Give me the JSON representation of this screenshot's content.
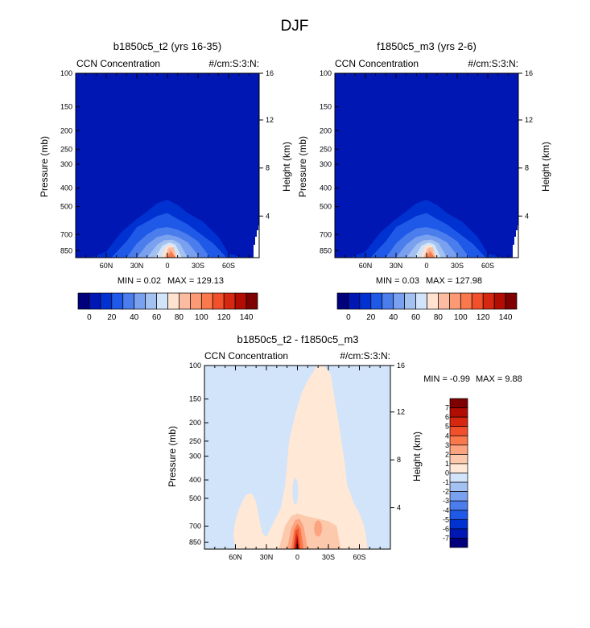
{
  "page_title": "DJF",
  "colors": {
    "ccn_scale": [
      "#00007d",
      "#0017b4",
      "#0032d2",
      "#1f59e8",
      "#4b7ded",
      "#7aa1ef",
      "#a3c1f1",
      "#d1e4fa",
      "#ffe3d0",
      "#fcbca1",
      "#fb9a75",
      "#f9784c",
      "#f2502b",
      "#d62810",
      "#b20d03",
      "#7e0000"
    ],
    "diff_scale": [
      "#00007d",
      "#0017b4",
      "#0032d2",
      "#1f59e8",
      "#4b7ded",
      "#7aa1ef",
      "#a3c1f1",
      "#d1e4fa",
      "#ffe8d6",
      "#fcc9ac",
      "#fba47f",
      "#f9784c",
      "#f2502b",
      "#d62810",
      "#b20d03",
      "#7e0000"
    ]
  },
  "chart_data": [
    {
      "type": "heatmap",
      "id": "panel-left",
      "title": "b1850c5_t2 (yrs 16-35)",
      "left_label": "CCN Concentration",
      "right_label": "#/cm:S:3:N:",
      "xlabel": "",
      "ylabel": "Pressure (mb)",
      "ylabel_right": "Height (km)",
      "x_ticks": [
        "60N",
        "30N",
        "0",
        "30S",
        "60S"
      ],
      "x_tick_values": [
        60,
        30,
        0,
        -30,
        -60
      ],
      "xlim": [
        90,
        -90
      ],
      "y_ticks": [
        100,
        150,
        200,
        250,
        300,
        400,
        500,
        700,
        850
      ],
      "ylim": [
        100,
        925
      ],
      "height_ticks": [
        4,
        8,
        12,
        16
      ],
      "min_label": "MIN =  0.02",
      "max_label": "MAX = 129.13",
      "levels": [
        0,
        10,
        20,
        30,
        40,
        50,
        60,
        70,
        80,
        90,
        100,
        110,
        120,
        130,
        140
      ],
      "colorbar_labels": [
        "0",
        "20",
        "40",
        "60",
        "80",
        "100",
        "120",
        "140"
      ],
      "peak_lat": -5,
      "peak_pressure": 880,
      "peak_value": 129.13
    },
    {
      "type": "heatmap",
      "id": "panel-right",
      "title": "f1850c5_m3 (yrs 2-6)",
      "left_label": "CCN Concentration",
      "right_label": "#/cm:S:3:N:",
      "xlabel": "",
      "ylabel": "Pressure (mb)",
      "ylabel_right": "Height (km)",
      "x_ticks": [
        "60N",
        "30N",
        "0",
        "30S",
        "60S"
      ],
      "x_tick_values": [
        60,
        30,
        0,
        -30,
        -60
      ],
      "xlim": [
        90,
        -90
      ],
      "y_ticks": [
        100,
        150,
        200,
        250,
        300,
        400,
        500,
        700,
        850
      ],
      "ylim": [
        100,
        925
      ],
      "height_ticks": [
        4,
        8,
        12,
        16
      ],
      "min_label": "MIN =  0.03",
      "max_label": "MAX = 127.98",
      "levels": [
        0,
        10,
        20,
        30,
        40,
        50,
        60,
        70,
        80,
        90,
        100,
        110,
        120,
        130,
        140
      ],
      "colorbar_labels": [
        "0",
        "20",
        "40",
        "60",
        "80",
        "100",
        "120",
        "140"
      ],
      "peak_lat": -5,
      "peak_pressure": 880,
      "peak_value": 127.98
    },
    {
      "type": "heatmap",
      "id": "panel-diff",
      "title": "b1850c5_t2 - f1850c5_m3",
      "left_label": "CCN Concentration",
      "right_label": "#/cm:S:3:N:",
      "xlabel": "",
      "ylabel": "Pressure (mb)",
      "ylabel_right": "Height (km)",
      "x_ticks": [
        "60N",
        "30N",
        "0",
        "30S",
        "60S"
      ],
      "x_tick_values": [
        60,
        30,
        0,
        -30,
        -60
      ],
      "xlim": [
        90,
        -90
      ],
      "y_ticks": [
        100,
        150,
        200,
        250,
        300,
        400,
        500,
        700,
        850
      ],
      "ylim": [
        100,
        925
      ],
      "height_ticks": [
        4,
        8,
        12,
        16
      ],
      "min_label": "MIN = -0.99",
      "max_label": "MAX =  9.88",
      "levels": [
        -7,
        -6,
        -5,
        -4,
        -3,
        -2,
        -1,
        0,
        1,
        2,
        3,
        4,
        5,
        6,
        7
      ],
      "colorbar_labels": [
        "7",
        "6",
        "5",
        "4",
        "3",
        "2",
        "1",
        "0",
        "-1",
        "-2",
        "-3",
        "-4",
        "-5",
        "-6",
        "-7"
      ],
      "peak_lat": 0,
      "peak_pressure": 880,
      "peak_value": 9.88
    }
  ]
}
